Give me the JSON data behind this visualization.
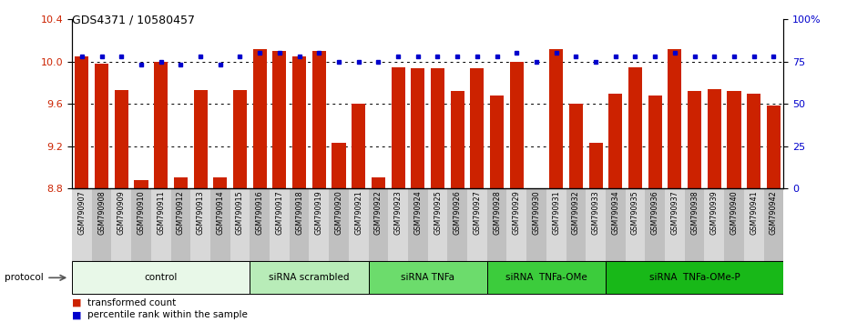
{
  "title": "GDS4371 / 10580457",
  "samples": [
    "GSM790907",
    "GSM790908",
    "GSM790909",
    "GSM790910",
    "GSM790911",
    "GSM790912",
    "GSM790913",
    "GSM790914",
    "GSM790915",
    "GSM790916",
    "GSM790917",
    "GSM790918",
    "GSM790919",
    "GSM790920",
    "GSM790921",
    "GSM790922",
    "GSM790923",
    "GSM790924",
    "GSM790925",
    "GSM790926",
    "GSM790927",
    "GSM790928",
    "GSM790929",
    "GSM790930",
    "GSM790931",
    "GSM790932",
    "GSM790933",
    "GSM790934",
    "GSM790935",
    "GSM790936",
    "GSM790937",
    "GSM790938",
    "GSM790939",
    "GSM790940",
    "GSM790941",
    "GSM790942"
  ],
  "red_values": [
    10.05,
    9.98,
    9.73,
    8.88,
    10.0,
    8.9,
    9.73,
    8.9,
    9.73,
    10.12,
    10.1,
    10.05,
    10.1,
    9.23,
    9.6,
    8.9,
    9.95,
    9.94,
    9.94,
    9.72,
    9.94,
    9.68,
    10.0,
    8.8,
    10.12,
    9.6,
    9.23,
    9.7,
    9.95,
    9.68,
    10.12,
    9.72,
    9.74,
    9.72,
    9.7,
    9.58
  ],
  "blue_values": [
    78,
    78,
    78,
    73,
    75,
    73,
    78,
    73,
    78,
    80,
    80,
    78,
    80,
    75,
    75,
    75,
    78,
    78,
    78,
    78,
    78,
    78,
    80,
    75,
    80,
    78,
    75,
    78,
    78,
    78,
    80,
    78,
    78,
    78,
    78,
    78
  ],
  "group_labels": [
    "control",
    "siRNA scrambled",
    "siRNA TNFa",
    "siRNA  TNFa-OMe",
    "siRNA  TNFa-OMe-P"
  ],
  "group_ranges": [
    [
      0,
      9
    ],
    [
      9,
      15
    ],
    [
      15,
      21
    ],
    [
      21,
      27
    ],
    [
      27,
      36
    ]
  ],
  "group_colors": [
    "#e8f8e8",
    "#b8ecb8",
    "#6cdc6c",
    "#3ccc3c",
    "#18b818"
  ],
  "ylim": [
    8.8,
    10.4
  ],
  "yticks": [
    8.8,
    9.2,
    9.6,
    10.0,
    10.4
  ],
  "right_ylim": [
    0,
    100
  ],
  "right_yticks": [
    0,
    25,
    50,
    75,
    100
  ],
  "bar_color": "#cc2200",
  "dot_color": "#0000cc",
  "tick_bg_even": "#d8d8d8",
  "tick_bg_odd": "#c0c0c0"
}
